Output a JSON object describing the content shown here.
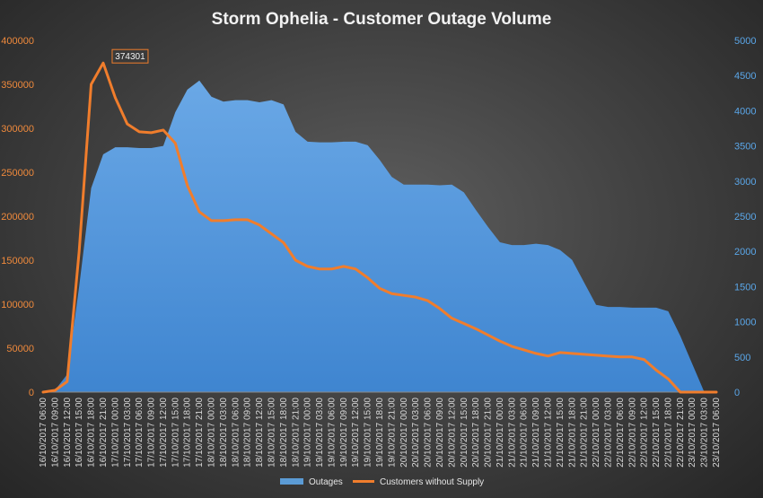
{
  "chart_data": {
    "type": "area+line",
    "title": "Storm Ophelia - Customer Outage Volume",
    "left_axis": {
      "ylim": [
        0,
        400000
      ],
      "ticks": [
        0,
        50000,
        100000,
        150000,
        200000,
        250000,
        300000,
        350000,
        400000
      ],
      "color": "#f08a3c"
    },
    "right_axis": {
      "ylim": [
        0,
        5000
      ],
      "ticks": [
        0,
        500,
        1000,
        1500,
        2000,
        2500,
        3000,
        3500,
        4000,
        4500,
        5000
      ],
      "color": "#5aa6e8"
    },
    "x_categories": [
      "16/10/2017 06:00",
      "16/10/2017 09:00",
      "16/10/2017 12:00",
      "16/10/2017 15:00",
      "16/10/2017 18:00",
      "16/10/2017 21:00",
      "17/10/2017 00:00",
      "17/10/2017 03:00",
      "17/10/2017 06:00",
      "17/10/2017 09:00",
      "17/10/2017 12:00",
      "17/10/2017 15:00",
      "17/10/2017 18:00",
      "17/10/2017 21:00",
      "18/10/2017 00:00",
      "18/10/2017 03:00",
      "18/10/2017 06:00",
      "18/10/2017 09:00",
      "18/10/2017 12:00",
      "18/10/2017 15:00",
      "18/10/2017 18:00",
      "18/10/2017 21:00",
      "19/10/2017 00:00",
      "19/10/2017 03:00",
      "19/10/2017 06:00",
      "19/10/2017 09:00",
      "19/10/2017 12:00",
      "19/10/2017 15:00",
      "19/10/2017 18:00",
      "19/10/2017 21:00",
      "20/10/2017 00:00",
      "20/10/2017 03:00",
      "20/10/2017 06:00",
      "20/10/2017 09:00",
      "20/10/2017 12:00",
      "20/10/2017 15:00",
      "20/10/2017 18:00",
      "20/10/2017 21:00",
      "21/10/2017 00:00",
      "21/10/2017 03:00",
      "21/10/2017 06:00",
      "21/10/2017 09:00",
      "21/10/2017 12:00",
      "21/10/2017 15:00",
      "21/10/2017 18:00",
      "21/10/2017 21:00",
      "22/10/2017 00:00",
      "22/10/2017 03:00",
      "22/10/2017 06:00",
      "22/10/2017 09:00",
      "22/10/2017 12:00",
      "22/10/2017 15:00",
      "22/10/2017 18:00",
      "22/10/2017 21:00",
      "23/10/2017 00:00",
      "23/10/2017 03:00",
      "23/10/2017 06:00"
    ],
    "series": [
      {
        "name": "Outages",
        "type": "area",
        "axis": "right",
        "color": "#4f93dc",
        "values": [
          0,
          30,
          250,
          1500,
          2900,
          3380,
          3480,
          3480,
          3470,
          3470,
          3500,
          3980,
          4300,
          4430,
          4200,
          4130,
          4150,
          4150,
          4120,
          4150,
          4090,
          3700,
          3560,
          3550,
          3550,
          3560,
          3560,
          3510,
          3300,
          3060,
          2950,
          2950,
          2950,
          2940,
          2950,
          2840,
          2590,
          2350,
          2130,
          2090,
          2090,
          2110,
          2090,
          2020,
          1880,
          1560,
          1240,
          1210,
          1210,
          1200,
          1200,
          1200,
          1150,
          800,
          400,
          0,
          0
        ]
      },
      {
        "name": "Customers without Supply",
        "type": "line",
        "axis": "left",
        "color": "#f07d2c",
        "values": [
          0,
          2000,
          12000,
          160000,
          350000,
          374301,
          335000,
          305000,
          296000,
          295000,
          298000,
          283000,
          235000,
          205000,
          195000,
          195000,
          196000,
          196000,
          190000,
          180000,
          170000,
          150000,
          143000,
          140000,
          140000,
          143000,
          140000,
          130000,
          118000,
          112000,
          110000,
          108000,
          104000,
          95000,
          84000,
          78000,
          72000,
          65000,
          58000,
          52000,
          48000,
          44000,
          41000,
          45000,
          44000,
          43000,
          42000,
          41000,
          40000,
          40000,
          37000,
          25000,
          15000,
          0,
          0,
          0,
          0
        ]
      }
    ],
    "peak_label": "374301",
    "legend": {
      "placement": "bottom-center",
      "items": [
        "Outages",
        "Customers without Supply"
      ]
    },
    "grid": false
  }
}
